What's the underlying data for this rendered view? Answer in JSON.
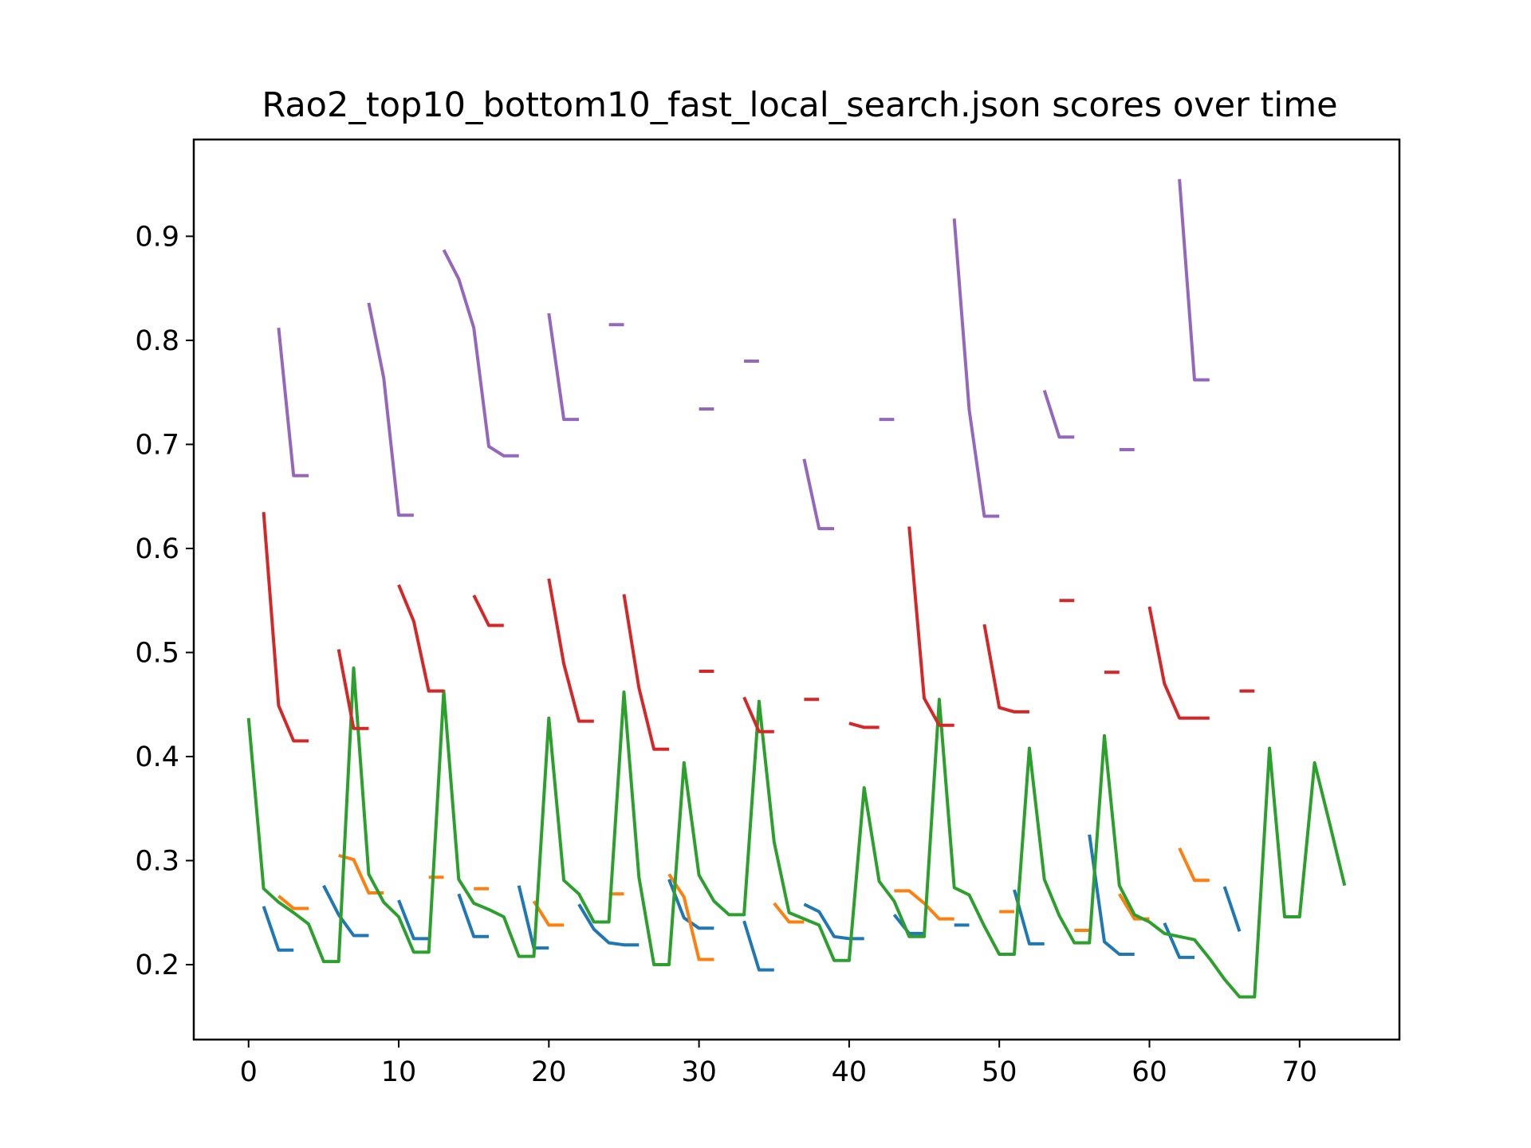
{
  "chart_data": {
    "type": "line",
    "title": "Rao2_top10_bottom10_fast_local_search.json scores over time",
    "xlabel": "",
    "ylabel": "",
    "xlim": [
      -3.65,
      76.65
    ],
    "ylim": [
      0.128,
      0.993
    ],
    "x_ticks": [
      0,
      10,
      20,
      30,
      40,
      50,
      60,
      70
    ],
    "y_ticks": [
      0.2,
      0.3,
      0.4,
      0.5,
      0.6,
      0.7,
      0.8,
      0.9
    ],
    "x_tick_labels": [
      "0",
      "10",
      "20",
      "30",
      "40",
      "50",
      "60",
      "70"
    ],
    "y_tick_labels": [
      "0.2",
      "0.3",
      "0.4",
      "0.5",
      "0.6",
      "0.7",
      "0.8",
      "0.9"
    ],
    "grid": false,
    "series": [
      {
        "color": "#1f77b4",
        "values": [
          null,
          0.256,
          0.214,
          0.214,
          null,
          0.276,
          0.248,
          0.228,
          0.228,
          null,
          0.262,
          0.225,
          0.225,
          null,
          0.268,
          0.227,
          0.227,
          null,
          0.276,
          0.216,
          0.216,
          null,
          0.258,
          0.234,
          0.221,
          0.219,
          0.219,
          null,
          0.282,
          0.245,
          0.235,
          0.235,
          null,
          0.242,
          0.195,
          0.195,
          null,
          0.258,
          0.251,
          0.227,
          0.225,
          0.225,
          null,
          0.248,
          0.23,
          0.23,
          null,
          0.238,
          0.238,
          null,
          null,
          0.272,
          0.22,
          0.22,
          null,
          null,
          0.325,
          0.222,
          0.21,
          0.21,
          null,
          0.24,
          0.207,
          0.207,
          null,
          0.275,
          0.232,
          null,
          null,
          null,
          null,
          null,
          null,
          null
        ]
      },
      {
        "color": "#ff7f0e",
        "values": [
          null,
          null,
          0.266,
          0.254,
          0.254,
          null,
          0.305,
          0.301,
          0.269,
          0.269,
          null,
          null,
          0.284,
          0.284,
          null,
          0.273,
          0.273,
          null,
          null,
          0.261,
          0.238,
          0.238,
          null,
          null,
          0.268,
          0.268,
          null,
          null,
          0.287,
          0.265,
          0.205,
          0.205,
          null,
          null,
          null,
          0.259,
          0.241,
          0.241,
          null,
          null,
          null,
          null,
          null,
          0.271,
          0.271,
          0.259,
          0.244,
          0.244,
          null,
          null,
          0.251,
          0.251,
          null,
          null,
          null,
          0.233,
          0.233,
          null,
          0.268,
          0.244,
          0.244,
          null,
          0.312,
          0.281,
          0.281,
          null,
          null,
          null,
          null,
          null,
          null,
          null,
          null,
          null
        ]
      },
      {
        "color": "#2ca02c",
        "values": [
          0.437,
          0.273,
          0.26,
          0.25,
          0.239,
          0.203,
          0.203,
          0.485,
          0.287,
          0.26,
          0.246,
          0.212,
          0.212,
          0.463,
          0.282,
          0.259,
          0.253,
          0.246,
          0.208,
          0.208,
          0.437,
          0.281,
          0.268,
          0.241,
          0.241,
          0.462,
          0.284,
          0.2,
          0.2,
          0.394,
          0.286,
          0.261,
          0.248,
          0.248,
          0.453,
          0.318,
          0.25,
          0.244,
          0.238,
          0.204,
          0.204,
          0.37,
          0.28,
          0.261,
          0.227,
          0.227,
          0.455,
          0.274,
          0.267,
          0.237,
          0.21,
          0.21,
          0.408,
          0.282,
          0.247,
          0.221,
          0.221,
          0.42,
          0.276,
          0.248,
          0.241,
          0.23,
          0.227,
          0.224,
          0.206,
          0.186,
          0.169,
          0.169,
          0.408,
          0.246,
          0.246,
          0.394,
          0.336,
          0.276
        ]
      },
      {
        "color": "#d62728",
        "values": [
          null,
          0.635,
          0.449,
          0.415,
          0.415,
          null,
          0.503,
          0.427,
          0.427,
          null,
          0.565,
          0.53,
          0.463,
          0.463,
          null,
          0.555,
          0.526,
          0.526,
          null,
          null,
          0.571,
          0.489,
          0.434,
          0.434,
          null,
          0.556,
          0.466,
          0.407,
          0.407,
          null,
          0.482,
          0.482,
          null,
          0.457,
          0.424,
          0.424,
          null,
          0.455,
          0.455,
          null,
          0.432,
          0.428,
          0.428,
          null,
          0.621,
          0.456,
          0.43,
          0.43,
          null,
          0.527,
          0.447,
          0.443,
          0.443,
          null,
          0.55,
          0.55,
          null,
          0.481,
          0.481,
          null,
          0.544,
          0.47,
          0.437,
          0.437,
          0.437,
          null,
          0.463,
          0.463,
          null,
          null,
          null,
          null,
          null,
          null
        ]
      },
      {
        "color": "#9467bd",
        "values": [
          null,
          null,
          0.812,
          0.67,
          0.67,
          null,
          null,
          null,
          0.836,
          0.764,
          0.632,
          0.632,
          null,
          0.887,
          0.859,
          0.812,
          0.698,
          0.689,
          0.689,
          null,
          0.826,
          0.724,
          0.724,
          null,
          0.815,
          0.815,
          null,
          null,
          null,
          null,
          0.734,
          0.734,
          null,
          0.78,
          0.78,
          null,
          null,
          0.686,
          0.619,
          0.619,
          null,
          null,
          0.724,
          0.724,
          null,
          null,
          null,
          0.917,
          0.733,
          0.631,
          0.631,
          null,
          null,
          0.752,
          0.707,
          0.707,
          null,
          null,
          0.695,
          0.695,
          null,
          null,
          0.955,
          0.762,
          0.762,
          null,
          null,
          null,
          null,
          null,
          null,
          null,
          null,
          null
        ]
      }
    ]
  }
}
